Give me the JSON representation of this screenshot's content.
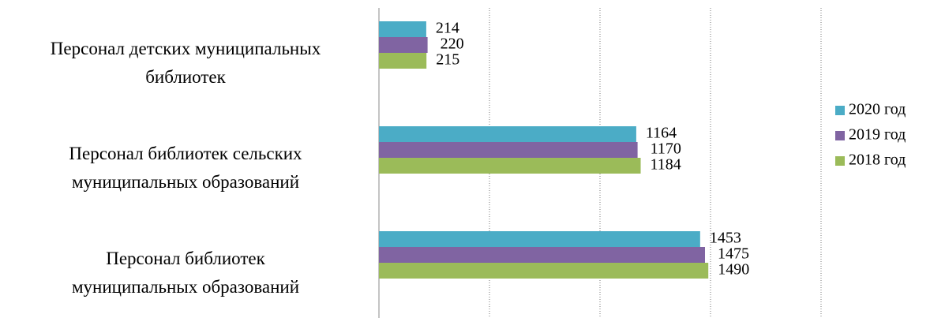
{
  "chart_data": {
    "type": "bar",
    "orientation": "horizontal",
    "categories": [
      "Персонал детских муниципальных\nбиблиотек",
      "Персонал библиотек сельских\nмуниципальных образований",
      "Персонал библиотек\nмуниципальных образований"
    ],
    "series": [
      {
        "name": "2020 год",
        "color": "#4bacc6",
        "values": [
          214,
          1164,
          1453
        ]
      },
      {
        "name": "2019 год",
        "color": "#8064a2",
        "values": [
          220,
          1170,
          1475
        ]
      },
      {
        "name": "2018 год",
        "color": "#9bbb59",
        "values": [
          215,
          1184,
          1490
        ]
      }
    ],
    "xlim": [
      0,
      2000
    ],
    "xticks": [
      0,
      500,
      1000,
      1500,
      2000
    ],
    "grid": true,
    "legend": "right"
  }
}
